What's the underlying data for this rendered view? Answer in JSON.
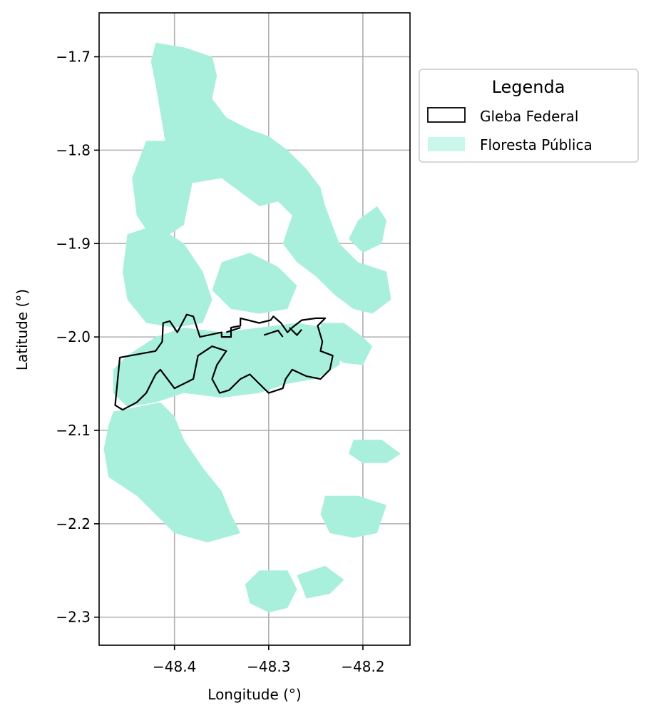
{
  "chart_data": {
    "type": "map",
    "xlabel": "Longitude (°)",
    "ylabel": "Latitude (°)",
    "xlim": [
      -48.48,
      -48.15
    ],
    "ylim": [
      -2.33,
      -1.653
    ],
    "x_ticks": [
      -48.4,
      -48.3,
      -48.2
    ],
    "x_tick_labels": [
      "−48.4",
      "−48.3",
      "−48.2"
    ],
    "y_ticks": [
      -1.7,
      -1.8,
      -1.9,
      -2.0,
      -2.1,
      -2.2,
      -2.3
    ],
    "y_tick_labels": [
      "−1.7",
      "−1.8",
      "−1.9",
      "−2.0",
      "−2.1",
      "−2.2",
      "−2.3"
    ],
    "grid": true,
    "legend": {
      "title": "Legenda",
      "placement": "outside-upper-right",
      "entries": [
        {
          "label": "Gleba Federal",
          "style": "outline",
          "color": "#000000"
        },
        {
          "label": "Floresta Pública",
          "style": "fill",
          "color": "#a8f0dc"
        }
      ]
    },
    "colors": {
      "forest": "#a8f0dc",
      "gleba": "#000000"
    },
    "floresta_publica": [
      {
        "name": "north-strip",
        "points": [
          [
            -48.42,
            -1.685
          ],
          [
            -48.39,
            -1.69
          ],
          [
            -48.36,
            -1.7
          ],
          [
            -48.355,
            -1.72
          ],
          [
            -48.36,
            -1.745
          ],
          [
            -48.345,
            -1.765
          ],
          [
            -48.32,
            -1.778
          ],
          [
            -48.3,
            -1.785
          ],
          [
            -48.28,
            -1.8
          ],
          [
            -48.26,
            -1.82
          ],
          [
            -48.245,
            -1.84
          ],
          [
            -48.24,
            -1.86
          ],
          [
            -48.26,
            -1.885
          ],
          [
            -48.275,
            -1.87
          ],
          [
            -48.29,
            -1.855
          ],
          [
            -48.31,
            -1.86
          ],
          [
            -48.33,
            -1.845
          ],
          [
            -48.35,
            -1.83
          ],
          [
            -48.38,
            -1.835
          ],
          [
            -48.4,
            -1.82
          ],
          [
            -48.41,
            -1.79
          ],
          [
            -48.415,
            -1.76
          ],
          [
            -48.42,
            -1.73
          ],
          [
            -48.425,
            -1.705
          ]
        ]
      },
      {
        "name": "northwest-patches",
        "points": [
          [
            -48.43,
            -1.79
          ],
          [
            -48.4,
            -1.79
          ],
          [
            -48.38,
            -1.83
          ],
          [
            -48.39,
            -1.88
          ],
          [
            -48.42,
            -1.9
          ],
          [
            -48.44,
            -1.87
          ],
          [
            -48.445,
            -1.83
          ]
        ]
      },
      {
        "name": "east-belt",
        "points": [
          [
            -48.26,
            -1.84
          ],
          [
            -48.24,
            -1.86
          ],
          [
            -48.225,
            -1.9
          ],
          [
            -48.205,
            -1.92
          ],
          [
            -48.175,
            -1.93
          ],
          [
            -48.17,
            -1.96
          ],
          [
            -48.19,
            -1.975
          ],
          [
            -48.21,
            -1.97
          ],
          [
            -48.23,
            -1.955
          ],
          [
            -48.25,
            -1.935
          ],
          [
            -48.27,
            -1.92
          ],
          [
            -48.285,
            -1.9
          ],
          [
            -48.275,
            -1.87
          ]
        ]
      },
      {
        "name": "east-spur",
        "points": [
          [
            -48.205,
            -1.875
          ],
          [
            -48.185,
            -1.86
          ],
          [
            -48.175,
            -1.875
          ],
          [
            -48.18,
            -1.9
          ],
          [
            -48.2,
            -1.91
          ],
          [
            -48.215,
            -1.895
          ]
        ]
      },
      {
        "name": "central-west",
        "points": [
          [
            -48.45,
            -1.89
          ],
          [
            -48.42,
            -1.88
          ],
          [
            -48.39,
            -1.9
          ],
          [
            -48.37,
            -1.93
          ],
          [
            -48.36,
            -1.96
          ],
          [
            -48.37,
            -1.985
          ],
          [
            -48.4,
            -1.99
          ],
          [
            -48.43,
            -1.985
          ],
          [
            -48.45,
            -1.96
          ],
          [
            -48.455,
            -1.93
          ]
        ]
      },
      {
        "name": "central-mid",
        "points": [
          [
            -48.35,
            -1.92
          ],
          [
            -48.32,
            -1.91
          ],
          [
            -48.29,
            -1.925
          ],
          [
            -48.27,
            -1.945
          ],
          [
            -48.28,
            -1.97
          ],
          [
            -48.31,
            -1.975
          ],
          [
            -48.34,
            -1.97
          ],
          [
            -48.36,
            -1.95
          ]
        ]
      },
      {
        "name": "gleba-interior",
        "points": [
          [
            -48.45,
            -2.02
          ],
          [
            -48.42,
            -2.0
          ],
          [
            -48.39,
            -1.99
          ],
          [
            -48.35,
            -1.995
          ],
          [
            -48.31,
            -1.99
          ],
          [
            -48.27,
            -1.985
          ],
          [
            -48.24,
            -1.99
          ],
          [
            -48.22,
            -2.005
          ],
          [
            -48.225,
            -2.03
          ],
          [
            -48.25,
            -2.045
          ],
          [
            -48.28,
            -2.05
          ],
          [
            -48.31,
            -2.06
          ],
          [
            -48.35,
            -2.065
          ],
          [
            -48.39,
            -2.06
          ],
          [
            -48.42,
            -2.07
          ],
          [
            -48.45,
            -2.075
          ],
          [
            -48.465,
            -2.06
          ],
          [
            -48.465,
            -2.035
          ]
        ]
      },
      {
        "name": "east-block",
        "points": [
          [
            -48.245,
            -1.985
          ],
          [
            -48.22,
            -1.985
          ],
          [
            -48.2,
            -2.0
          ],
          [
            -48.19,
            -2.01
          ],
          [
            -48.2,
            -2.03
          ],
          [
            -48.22,
            -2.028
          ],
          [
            -48.24,
            -2.015
          ]
        ]
      },
      {
        "name": "southwest-main",
        "points": [
          [
            -48.465,
            -2.08
          ],
          [
            -48.44,
            -2.075
          ],
          [
            -48.415,
            -2.07
          ],
          [
            -48.4,
            -2.085
          ],
          [
            -48.39,
            -2.11
          ],
          [
            -48.37,
            -2.14
          ],
          [
            -48.35,
            -2.165
          ],
          [
            -48.34,
            -2.19
          ],
          [
            -48.33,
            -2.21
          ],
          [
            -48.365,
            -2.22
          ],
          [
            -48.4,
            -2.21
          ],
          [
            -48.42,
            -2.19
          ],
          [
            -48.44,
            -2.17
          ],
          [
            -48.47,
            -2.15
          ],
          [
            -48.475,
            -2.12
          ],
          [
            -48.47,
            -2.095
          ]
        ]
      },
      {
        "name": "south-block",
        "points": [
          [
            -48.31,
            -2.25
          ],
          [
            -48.28,
            -2.25
          ],
          [
            -48.27,
            -2.27
          ],
          [
            -48.28,
            -2.29
          ],
          [
            -48.3,
            -2.295
          ],
          [
            -48.32,
            -2.285
          ],
          [
            -48.325,
            -2.265
          ]
        ]
      },
      {
        "name": "southeast-block",
        "points": [
          [
            -48.24,
            -2.17
          ],
          [
            -48.205,
            -2.17
          ],
          [
            -48.175,
            -2.18
          ],
          [
            -48.185,
            -2.21
          ],
          [
            -48.21,
            -2.215
          ],
          [
            -48.235,
            -2.21
          ],
          [
            -48.245,
            -2.19
          ]
        ]
      },
      {
        "name": "east-island",
        "points": [
          [
            -48.21,
            -2.11
          ],
          [
            -48.18,
            -2.11
          ],
          [
            -48.16,
            -2.125
          ],
          [
            -48.175,
            -2.135
          ],
          [
            -48.2,
            -2.135
          ],
          [
            -48.215,
            -2.125
          ]
        ]
      },
      {
        "name": "south-spur",
        "points": [
          [
            -48.27,
            -2.255
          ],
          [
            -48.24,
            -2.245
          ],
          [
            -48.22,
            -2.26
          ],
          [
            -48.235,
            -2.275
          ],
          [
            -48.26,
            -2.28
          ]
        ]
      }
    ],
    "gleba_federal": [
      [
        -48.463,
        -2.073
      ],
      [
        -48.458,
        -2.022
      ],
      [
        -48.42,
        -2.015
      ],
      [
        -48.413,
        -2.005
      ],
      [
        -48.412,
        -1.985
      ],
      [
        -48.405,
        -1.983
      ],
      [
        -48.397,
        -1.995
      ],
      [
        -48.387,
        -1.976
      ],
      [
        -48.38,
        -1.978
      ],
      [
        -48.373,
        -2.0
      ],
      [
        -48.35,
        -1.995
      ],
      [
        -48.35,
        -2.0
      ],
      [
        -48.34,
        -2.0
      ],
      [
        -48.34,
        -1.99
      ],
      [
        -48.33,
        -1.988
      ],
      [
        -48.33,
        -1.98
      ],
      [
        -48.31,
        -1.985
      ],
      [
        -48.298,
        -1.982
      ],
      [
        -48.295,
        -1.978
      ],
      [
        -48.287,
        -1.985
      ],
      [
        -48.28,
        -1.995
      ],
      [
        -48.275,
        -1.99
      ],
      [
        -48.265,
        -1.982
      ],
      [
        -48.25,
        -1.98
      ],
      [
        -48.24,
        -1.98
      ],
      [
        -48.248,
        -1.988
      ],
      [
        -48.243,
        -2.005
      ],
      [
        -48.245,
        -2.015
      ],
      [
        -48.232,
        -2.02
      ],
      [
        -48.235,
        -2.035
      ],
      [
        -48.245,
        -2.045
      ],
      [
        -48.26,
        -2.042
      ],
      [
        -48.275,
        -2.035
      ],
      [
        -48.282,
        -2.045
      ],
      [
        -48.285,
        -2.055
      ],
      [
        -48.3,
        -2.06
      ],
      [
        -48.31,
        -2.05
      ],
      [
        -48.32,
        -2.04
      ],
      [
        -48.33,
        -2.045
      ],
      [
        -48.342,
        -2.057
      ],
      [
        -48.352,
        -2.06
      ],
      [
        -48.36,
        -2.045
      ],
      [
        -48.355,
        -2.03
      ],
      [
        -48.345,
        -2.015
      ],
      [
        -48.36,
        -2.01
      ],
      [
        -48.375,
        -2.02
      ],
      [
        -48.38,
        -2.045
      ],
      [
        -48.4,
        -2.055
      ],
      [
        -48.415,
        -2.035
      ],
      [
        -48.42,
        -2.04
      ],
      [
        -48.43,
        -2.06
      ],
      [
        -48.44,
        -2.07
      ],
      [
        -48.455,
        -2.078
      ]
    ],
    "gleba_inner_marks": [
      [
        [
          -48.345,
          -1.995
        ],
        [
          -48.33,
          -1.99
        ]
      ],
      [
        [
          -48.305,
          -1.998
        ],
        [
          -48.29,
          -1.993
        ],
        [
          -48.285,
          -2.0
        ]
      ],
      [
        [
          -48.278,
          -1.99
        ],
        [
          -48.27,
          -1.998
        ],
        [
          -48.265,
          -1.992
        ]
      ]
    ]
  }
}
